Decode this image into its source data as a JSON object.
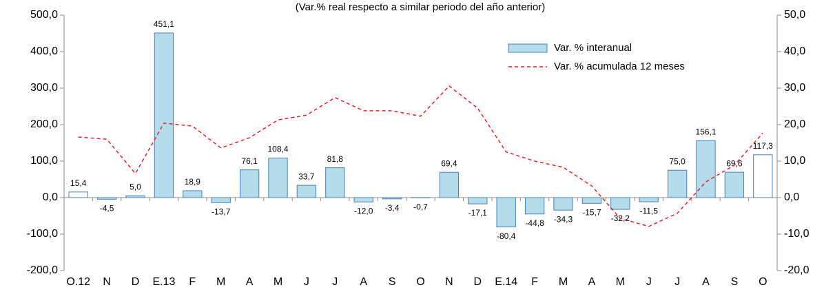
{
  "chart_data": {
    "type": "bar_line",
    "subtitle": "(Var.% real respecto a similar periodo del año anterior)",
    "categories": [
      "O.12",
      "N",
      "D",
      "E.13",
      "F",
      "M",
      "A",
      "M",
      "J",
      "J",
      "A",
      "S",
      "O",
      "N",
      "D",
      "E.14",
      "F",
      "M",
      "A",
      "M",
      "J",
      "J",
      "A",
      "S",
      "O"
    ],
    "series": [
      {
        "name": "Var. % interanual",
        "type": "bar",
        "color": "#b4dcea",
        "colors": [
          "#ffffff",
          "#b4dcea",
          "#b4dcea",
          "#b4dcea",
          "#b4dcea",
          "#b4dcea",
          "#b4dcea",
          "#b4dcea",
          "#b4dcea",
          "#b4dcea",
          "#b4dcea",
          "#b4dcea",
          "#b4dcea",
          "#b4dcea",
          "#b4dcea",
          "#b4dcea",
          "#b4dcea",
          "#b4dcea",
          "#b4dcea",
          "#b4dcea",
          "#b4dcea",
          "#b4dcea",
          "#b4dcea",
          "#b4dcea",
          "#ffffff"
        ],
        "values": [
          15.4,
          -4.5,
          5.0,
          451.1,
          18.9,
          -13.7,
          76.1,
          108.4,
          33.7,
          81.8,
          -12.0,
          -3.4,
          -0.7,
          69.4,
          -17.1,
          -80.4,
          -44.8,
          -34.3,
          -15.7,
          -32.2,
          -11.5,
          75.0,
          156.1,
          69.6,
          117.3
        ],
        "value_labels": [
          "15,4",
          "-4,5",
          "5,0",
          "451,1",
          "18,9",
          "-13,7",
          "76,1",
          "108,4",
          "33,7",
          "81,8",
          "-12,0",
          "-3,4",
          "-0,7",
          "69,4",
          "-17,1",
          "-80,4",
          "-44,8",
          "-34,3",
          "-15,7",
          "-32,2",
          "-11,5",
          "75,0",
          "156,1",
          "69,6",
          "117,3"
        ]
      },
      {
        "name": "Var. % acumulada 12 meses",
        "type": "line",
        "axis": "y2",
        "color": "#e8202a",
        "values": [
          16.6,
          16.0,
          6.6,
          20.4,
          19.6,
          13.6,
          16.4,
          21.3,
          22.6,
          27.4,
          23.8,
          23.8,
          22.3,
          30.6,
          24.5,
          12.5,
          10.0,
          8.3,
          3.2,
          -5.7,
          -7.9,
          -4.3,
          4.3,
          8.9,
          17.7
        ]
      }
    ],
    "ylim": [
      -200,
      500
    ],
    "yticks": [
      {
        "value": -200,
        "label": "-200,0"
      },
      {
        "value": -100,
        "label": "-100,0"
      },
      {
        "value": 0,
        "label": "0,0"
      },
      {
        "value": 100,
        "label": "100,0"
      },
      {
        "value": 200,
        "label": "200,0"
      },
      {
        "value": 300,
        "label": "300,0"
      },
      {
        "value": 400,
        "label": "400,0"
      },
      {
        "value": 500,
        "label": "500,0"
      }
    ],
    "y2lim": [
      -20,
      50
    ],
    "y2ticks": [
      {
        "value": -20,
        "label": "-20,0"
      },
      {
        "value": -10,
        "label": "-10,0"
      },
      {
        "value": 0,
        "label": "0,0"
      },
      {
        "value": 10,
        "label": "10,0"
      },
      {
        "value": 20,
        "label": "20,0"
      },
      {
        "value": 30,
        "label": "30,0"
      },
      {
        "value": 40,
        "label": "40,0"
      },
      {
        "value": 50,
        "label": "50,0"
      }
    ]
  }
}
